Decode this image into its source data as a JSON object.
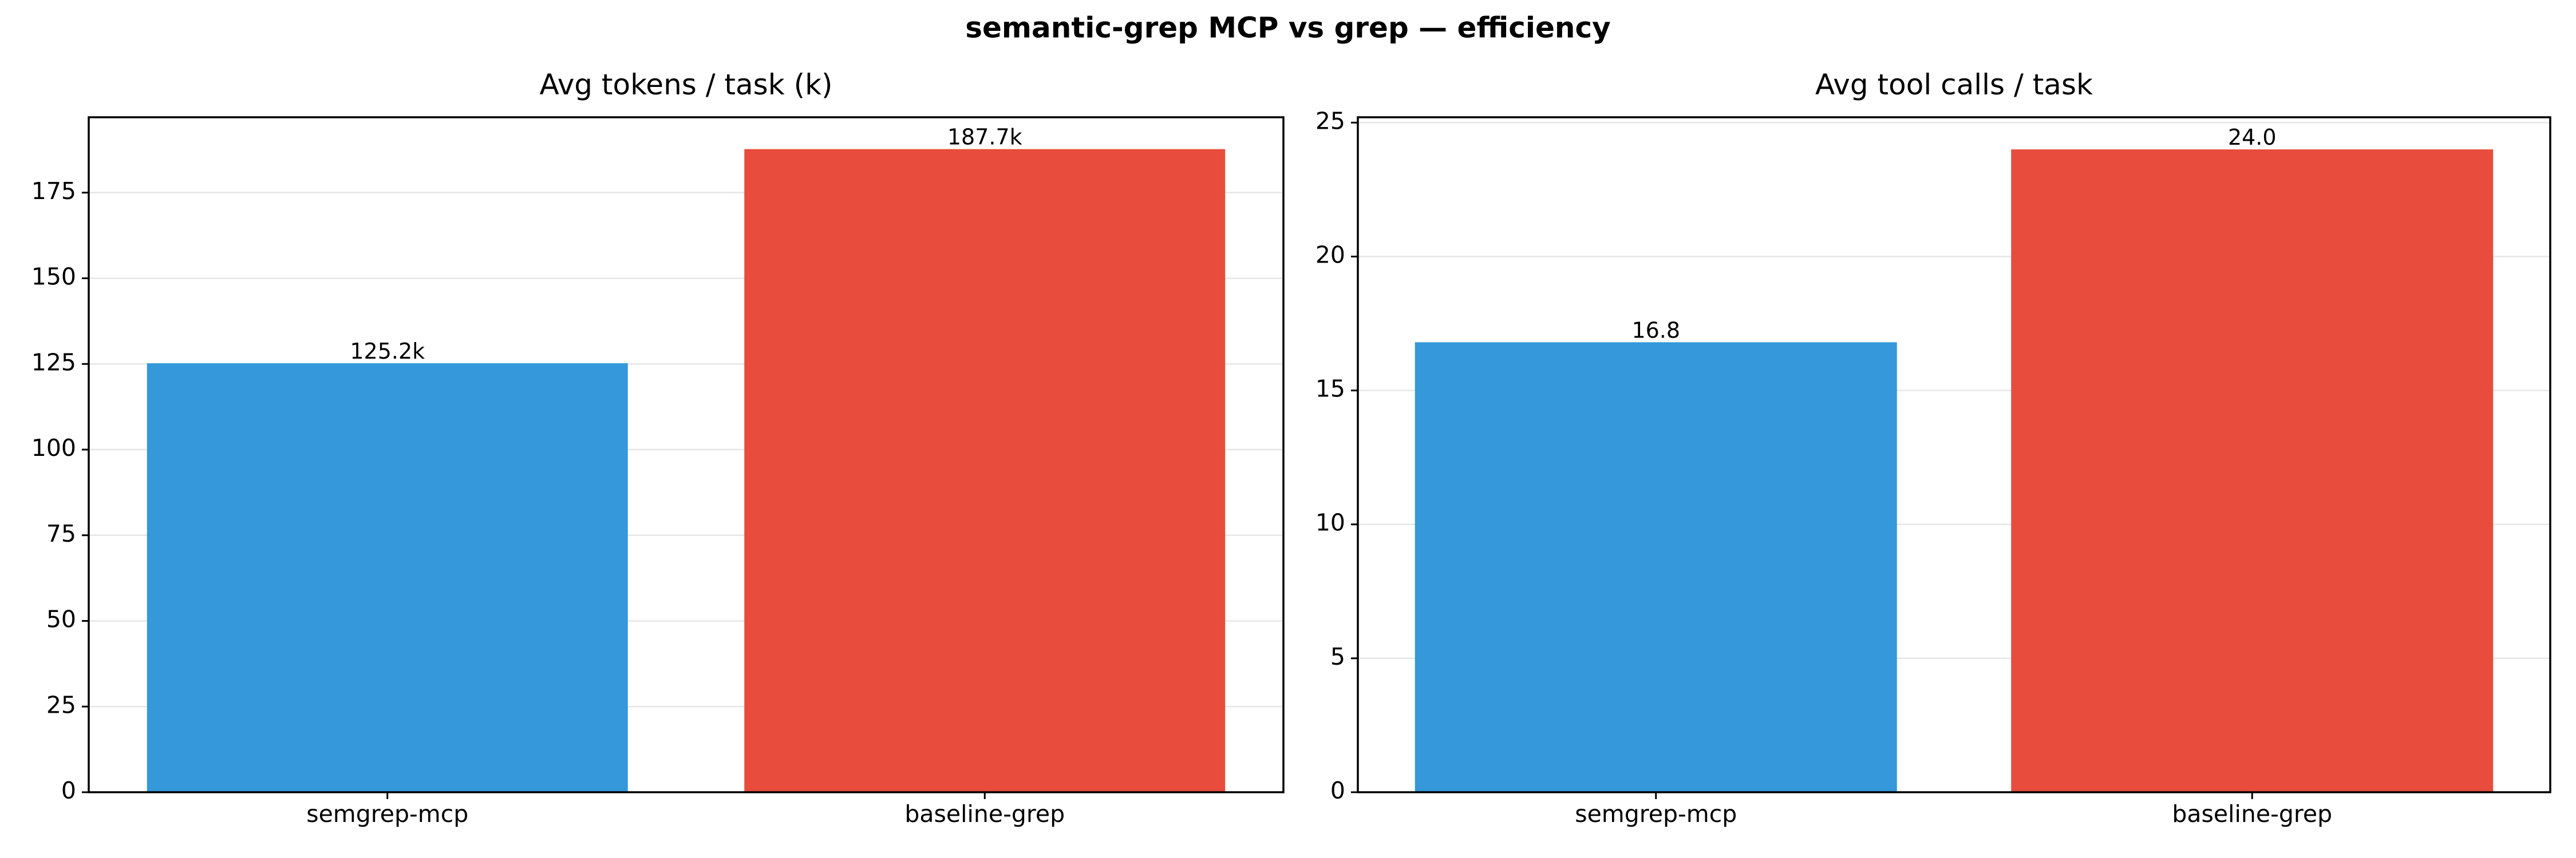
{
  "figure_title": "semantic-grep MCP vs grep — efficiency",
  "chart_data": [
    {
      "type": "bar",
      "title": "Avg tokens / task (k)",
      "xlabel": "",
      "ylabel": "",
      "categories": [
        "semgrep-mcp",
        "baseline-grep"
      ],
      "values": [
        125.2,
        187.7
      ],
      "value_labels": [
        "125.2k",
        "187.7k"
      ],
      "colors": [
        "#3498db",
        "#e74c3c"
      ],
      "ylim": [
        0,
        197
      ],
      "yticks": [
        0,
        25,
        50,
        75,
        100,
        125,
        150,
        175
      ],
      "ytick_labels": [
        "0",
        "25",
        "50",
        "75",
        "100",
        "125",
        "150",
        "175"
      ],
      "grid": "y",
      "legend": "none"
    },
    {
      "type": "bar",
      "title": "Avg tool calls / task",
      "xlabel": "",
      "ylabel": "",
      "categories": [
        "semgrep-mcp",
        "baseline-grep"
      ],
      "values": [
        16.8,
        24.0
      ],
      "value_labels": [
        "16.8",
        "24.0"
      ],
      "colors": [
        "#3498db",
        "#e74c3c"
      ],
      "ylim": [
        0,
        25.2
      ],
      "yticks": [
        0,
        5,
        10,
        15,
        20,
        25
      ],
      "ytick_labels": [
        "0",
        "5",
        "10",
        "15",
        "20",
        "25"
      ],
      "grid": "y",
      "legend": "none"
    }
  ]
}
